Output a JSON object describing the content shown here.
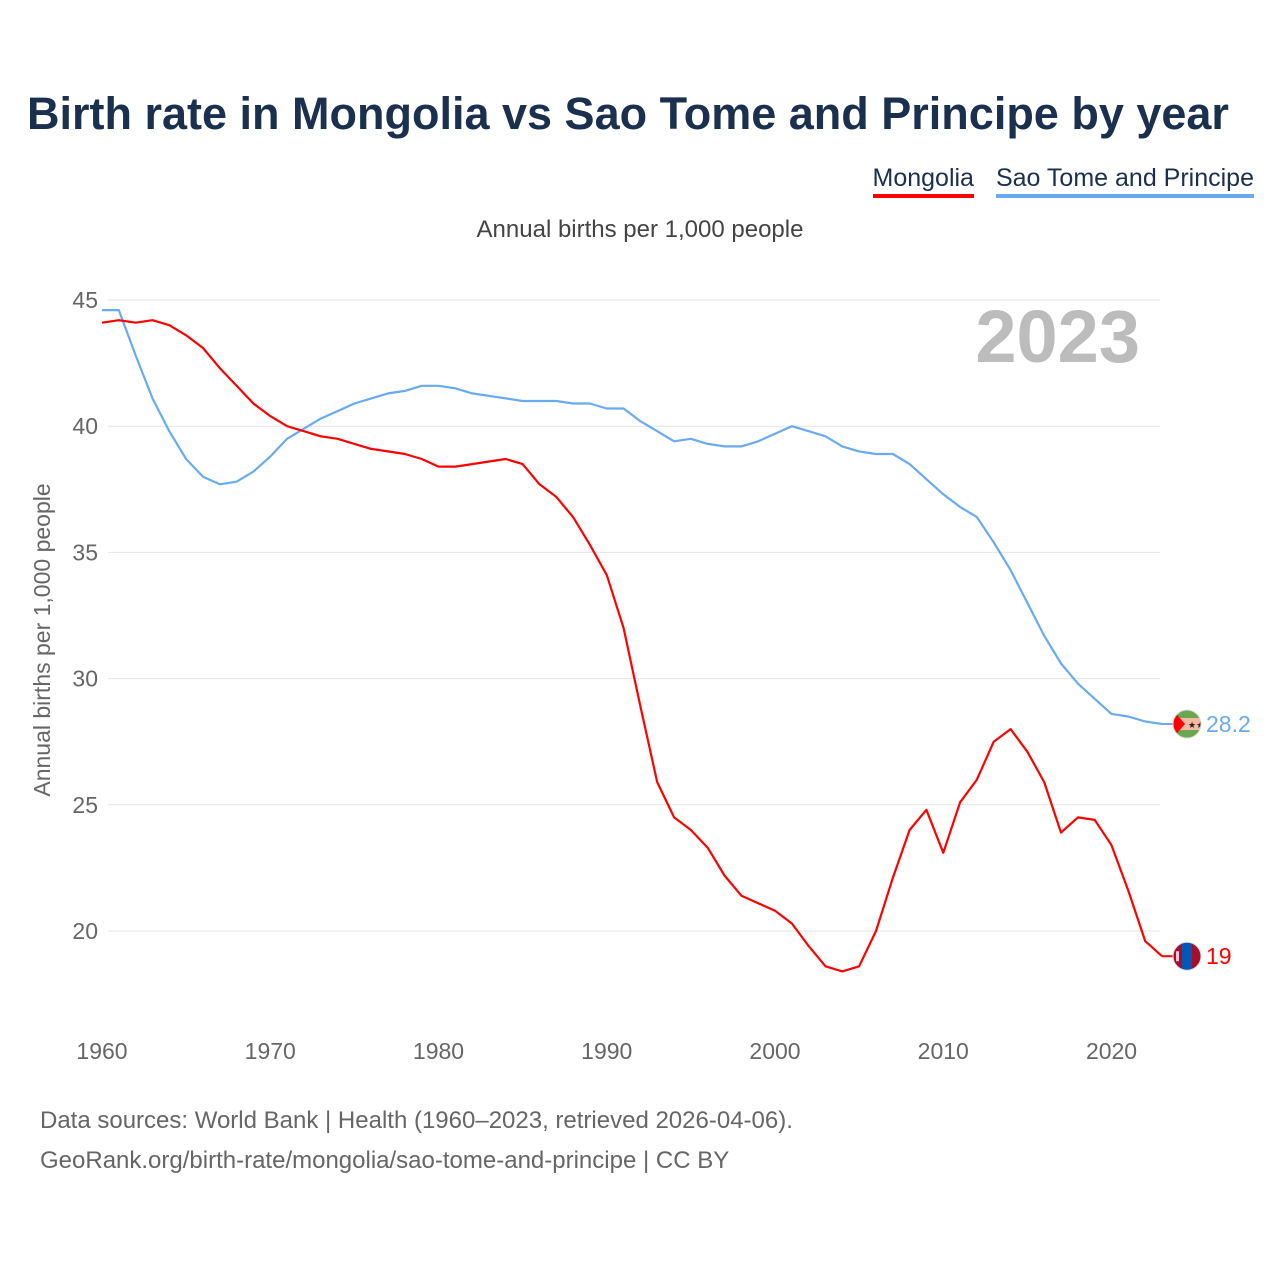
{
  "title": "Birth rate in Mongolia vs Sao Tome and Principe by year",
  "subtitle": "Annual births per 1,000 people",
  "footer": {
    "line1": "Data sources: World Bank | Health (1960–2023, retrieved 2026-04-06).",
    "line2": "GeoRank.org/birth-rate/mongolia/sao-tome-and-principe | CC BY"
  },
  "chart_data": {
    "type": "line",
    "title": "Birth rate in Mongolia vs Sao Tome and Principe by year",
    "ylabel": "Annual births per 1,000 people",
    "xlabel": "",
    "year_watermark": "2023",
    "xlim": [
      1960,
      2023
    ],
    "ylim": [
      17,
      45
    ],
    "xticks": [
      "1960",
      "1970",
      "1980",
      "1990",
      "2000",
      "2010",
      "2020"
    ],
    "yticks": [
      "20",
      "25",
      "30",
      "35",
      "40",
      "45"
    ],
    "grid": true,
    "legend": "top-right",
    "x": [
      1960,
      1961,
      1962,
      1963,
      1964,
      1965,
      1966,
      1967,
      1968,
      1969,
      1970,
      1971,
      1972,
      1973,
      1974,
      1975,
      1976,
      1977,
      1978,
      1979,
      1980,
      1981,
      1982,
      1983,
      1984,
      1985,
      1986,
      1987,
      1988,
      1989,
      1990,
      1991,
      1992,
      1993,
      1994,
      1995,
      1996,
      1997,
      1998,
      1999,
      2000,
      2001,
      2002,
      2003,
      2004,
      2005,
      2006,
      2007,
      2008,
      2009,
      2010,
      2011,
      2012,
      2013,
      2014,
      2015,
      2016,
      2017,
      2018,
      2019,
      2020,
      2021,
      2022,
      2023
    ],
    "series": [
      {
        "name": "Mongolia",
        "color": "#ff0000",
        "end_label": "19",
        "flag": "mongolia-flag",
        "values": [
          44.1,
          44.2,
          44.1,
          44.2,
          44.0,
          43.6,
          43.1,
          42.3,
          41.6,
          40.9,
          40.4,
          40.0,
          39.8,
          39.6,
          39.5,
          39.3,
          39.1,
          39.0,
          38.9,
          38.7,
          38.4,
          38.4,
          38.5,
          38.6,
          38.7,
          38.5,
          37.7,
          37.2,
          36.4,
          35.3,
          34.1,
          32.0,
          28.9,
          25.9,
          24.5,
          24.0,
          23.3,
          22.2,
          21.4,
          21.1,
          20.8,
          20.3,
          19.4,
          18.6,
          18.4,
          18.6,
          20.0,
          22.1,
          24.0,
          24.8,
          23.1,
          25.1,
          26.0,
          27.5,
          28.0,
          27.1,
          25.9,
          23.9,
          24.5,
          24.4,
          23.4,
          21.6,
          19.6,
          19.0
        ]
      },
      {
        "name": "Sao Tome and Principe",
        "color": "#6aaaf0",
        "end_label": "28.2",
        "flag": "sao-tome-flag",
        "values": [
          44.6,
          44.6,
          42.8,
          41.1,
          39.8,
          38.7,
          38.0,
          37.7,
          37.8,
          38.2,
          38.8,
          39.5,
          39.9,
          40.3,
          40.6,
          40.9,
          41.1,
          41.3,
          41.4,
          41.6,
          41.6,
          41.5,
          41.3,
          41.2,
          41.1,
          41.0,
          41.0,
          41.0,
          40.9,
          40.9,
          40.7,
          40.7,
          40.2,
          39.8,
          39.4,
          39.5,
          39.3,
          39.2,
          39.2,
          39.4,
          39.7,
          40.0,
          39.8,
          39.6,
          39.2,
          39.0,
          38.9,
          38.9,
          38.5,
          37.9,
          37.3,
          36.8,
          36.4,
          35.4,
          34.3,
          33.0,
          31.7,
          30.6,
          29.8,
          29.2,
          28.6,
          28.5,
          28.3,
          28.2
        ]
      }
    ]
  }
}
